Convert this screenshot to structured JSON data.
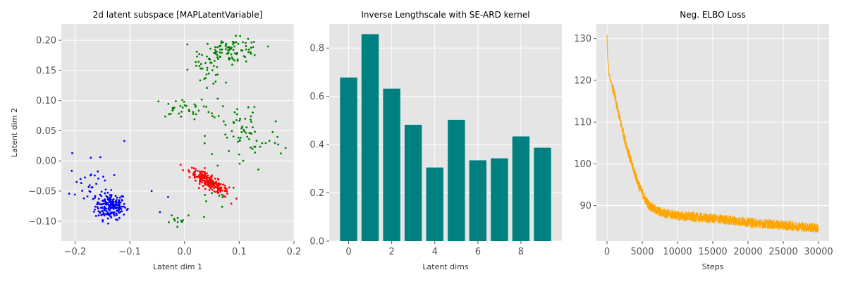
{
  "figure": {
    "background": "#ffffff",
    "panel_bg": "#e5e5e5",
    "grid_color": "#ffffff",
    "tick_color": "#555555"
  },
  "chart_data": [
    {
      "type": "scatter",
      "title": "2d latent subspace [MAPLatentVariable]",
      "xlabel": "Latent dim 1",
      "ylabel": "Latent dim 2",
      "xlim": [
        -0.225,
        0.2
      ],
      "ylim": [
        -0.133,
        0.227
      ],
      "xticks": [
        -0.2,
        -0.1,
        0.0,
        0.1,
        0.2
      ],
      "xtick_labels": [
        "−0.2",
        "−0.1",
        "0.0",
        "0.1",
        "0.2"
      ],
      "yticks": [
        -0.1,
        -0.05,
        0.0,
        0.05,
        0.1,
        0.15,
        0.2
      ],
      "ytick_labels": [
        "−0.10",
        "−0.05",
        "0.00",
        "0.05",
        "0.10",
        "0.15",
        "0.20"
      ],
      "grid": true,
      "clusters": [
        {
          "color": "#0000ff",
          "n": 190,
          "cx": -0.135,
          "cy": -0.075,
          "sx": 0.014,
          "sy": 0.011,
          "spread": [
            [
              -0.205,
              0.013
            ],
            [
              -0.11,
              0.033
            ],
            [
              -0.045,
              -0.085
            ],
            [
              -0.19,
              -0.03
            ],
            [
              -0.03,
              -0.06
            ],
            [
              -0.06,
              -0.05
            ]
          ]
        },
        {
          "color": "#0000ff",
          "n": 30,
          "cx": -0.17,
          "cy": -0.04,
          "sx": 0.02,
          "sy": 0.02
        },
        {
          "color": "#ff0000",
          "n": 200,
          "cx": 0.045,
          "cy": -0.035,
          "sx": 0.018,
          "sy": 0.011,
          "corr": -0.85
        },
        {
          "color": "#008000",
          "n": 95,
          "cx": 0.085,
          "cy": 0.183,
          "sx": 0.028,
          "sy": 0.01
        },
        {
          "color": "#008000",
          "n": 30,
          "cx": 0.04,
          "cy": 0.15,
          "sx": 0.015,
          "sy": 0.012
        },
        {
          "color": "#008000",
          "n": 35,
          "cx": 0.0,
          "cy": 0.087,
          "sx": 0.03,
          "sy": 0.008
        },
        {
          "color": "#008000",
          "n": 70,
          "cx": 0.11,
          "cy": 0.04,
          "sx": 0.035,
          "sy": 0.03
        },
        {
          "color": "#008000",
          "n": 12,
          "cx": -0.01,
          "cy": -0.095,
          "sx": 0.015,
          "sy": 0.005
        },
        {
          "color": "#008000",
          "n": 10,
          "cx": 0.06,
          "cy": -0.06,
          "sx": 0.02,
          "sy": 0.02
        }
      ]
    },
    {
      "type": "bar",
      "title": "Inverse Lengthscale with SE-ARD kernel",
      "xlabel": "Latent dims",
      "ylabel": "",
      "categories": [
        0,
        1,
        2,
        3,
        4,
        5,
        6,
        7,
        8,
        9
      ],
      "values": [
        0.678,
        0.858,
        0.632,
        0.482,
        0.305,
        0.503,
        0.335,
        0.343,
        0.434,
        0.387
      ],
      "color": "#008080",
      "xlim": [
        -0.9,
        9.9
      ],
      "ylim": [
        0.0,
        0.9
      ],
      "xticks": [
        0,
        2,
        4,
        6,
        8
      ],
      "xtick_labels": [
        "0",
        "2",
        "4",
        "6",
        "8"
      ],
      "yticks": [
        0.0,
        0.2,
        0.4,
        0.6,
        0.8
      ],
      "ytick_labels": [
        "0.0",
        "0.2",
        "0.4",
        "0.6",
        "0.8"
      ],
      "grid": true
    },
    {
      "type": "line",
      "title": "Neg. ELBO Loss",
      "xlabel": "Steps",
      "ylabel": "",
      "color": "#ffa500",
      "xlim": [
        -1500,
        31500
      ],
      "ylim": [
        81.5,
        133.5
      ],
      "xticks": [
        0,
        5000,
        10000,
        15000,
        20000,
        25000,
        30000
      ],
      "xtick_labels": [
        "0",
        "5000",
        "10000",
        "15000",
        "20000",
        "25000",
        "30000"
      ],
      "yticks": [
        90,
        100,
        110,
        120,
        130
      ],
      "ytick_labels": [
        "90",
        "100",
        "110",
        "120",
        "130"
      ],
      "grid": true,
      "x": [
        0,
        100,
        250,
        500,
        1000,
        1500,
        2000,
        2500,
        3000,
        3500,
        4000,
        4500,
        5000,
        5500,
        6000,
        7000,
        8000,
        10000,
        12000,
        15000,
        18000,
        20000,
        22000,
        25000,
        28000,
        30000
      ],
      "y": [
        130.5,
        125,
        122,
        120,
        117,
        113,
        109.5,
        106,
        103,
        100,
        97.5,
        95,
        93,
        91.3,
        90,
        88.8,
        88.2,
        87.6,
        87.3,
        86.9,
        86.4,
        86.0,
        85.7,
        85.3,
        84.9,
        84.6
      ],
      "noise_amplitude": 1.2
    }
  ]
}
